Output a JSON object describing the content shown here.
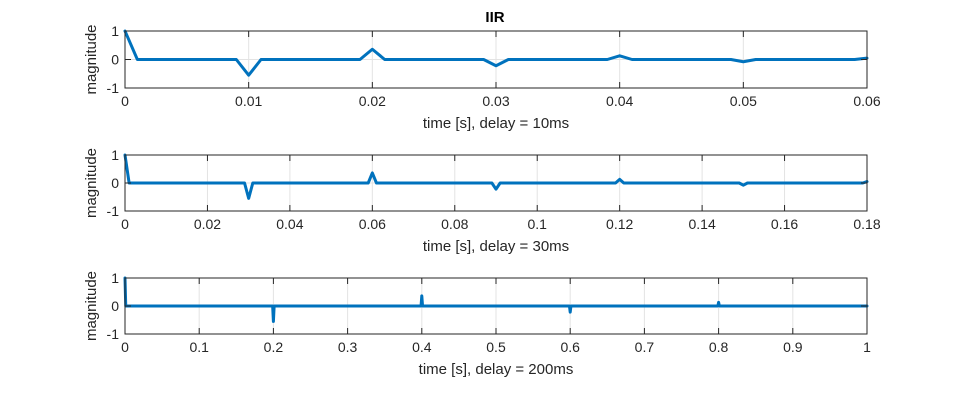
{
  "figure": {
    "title": "IIR",
    "line_color": "#0072BD"
  },
  "chart_data": [
    {
      "type": "line",
      "title": "IIR",
      "xlabel": "time [s], delay = 10ms",
      "ylabel": "magnitude",
      "xlim": [
        0,
        0.06
      ],
      "ylim": [
        -1,
        1
      ],
      "xticks": [
        0,
        0.01,
        0.02,
        0.03,
        0.04,
        0.05,
        0.06
      ],
      "xtick_labels": [
        "0",
        "0.01",
        "0.02",
        "0.03",
        "0.04",
        "0.05",
        "0.06"
      ],
      "yticks": [
        -1,
        0,
        1
      ],
      "ytick_labels": [
        "-1",
        "0",
        "1"
      ],
      "grid": true,
      "series": [
        {
          "x": [
            0,
            0.001,
            0.009,
            0.01,
            0.011,
            0.019,
            0.02,
            0.021,
            0.029,
            0.03,
            0.031,
            0.039,
            0.04,
            0.041,
            0.049,
            0.05,
            0.051,
            0.059,
            0.06
          ],
          "y": [
            1,
            0,
            0,
            -0.55,
            0,
            0,
            0.36,
            0,
            0,
            -0.22,
            0,
            0,
            0.13,
            0,
            0,
            -0.08,
            0,
            0,
            0.05
          ]
        }
      ]
    },
    {
      "type": "line",
      "xlabel": "time [s], delay = 30ms",
      "ylabel": "magnitude",
      "xlim": [
        0,
        0.18
      ],
      "ylim": [
        -1,
        1
      ],
      "xticks": [
        0,
        0.02,
        0.04,
        0.06,
        0.08,
        0.1,
        0.12,
        0.14,
        0.16,
        0.18
      ],
      "xtick_labels": [
        "0",
        "0.02",
        "0.04",
        "0.06",
        "0.08",
        "0.1",
        "0.12",
        "0.14",
        "0.16",
        "0.18"
      ],
      "yticks": [
        -1,
        0,
        1
      ],
      "ytick_labels": [
        "-1",
        "0",
        "1"
      ],
      "grid": true,
      "series": [
        {
          "x": [
            0,
            0.001,
            0.029,
            0.03,
            0.031,
            0.059,
            0.06,
            0.061,
            0.089,
            0.09,
            0.091,
            0.119,
            0.12,
            0.121,
            0.149,
            0.15,
            0.151,
            0.179,
            0.18
          ],
          "y": [
            1,
            0,
            0,
            -0.55,
            0,
            0,
            0.36,
            0,
            0,
            -0.22,
            0,
            0,
            0.13,
            0,
            0,
            -0.08,
            0,
            0,
            0.05
          ]
        }
      ]
    },
    {
      "type": "line",
      "xlabel": "time [s], delay = 200ms",
      "ylabel": "magnitude",
      "xlim": [
        0,
        1
      ],
      "ylim": [
        -1,
        1
      ],
      "xticks": [
        0,
        0.1,
        0.2,
        0.3,
        0.4,
        0.5,
        0.6,
        0.7,
        0.8,
        0.9,
        1
      ],
      "xtick_labels": [
        "0",
        "0.1",
        "0.2",
        "0.3",
        "0.4",
        "0.5",
        "0.6",
        "0.7",
        "0.8",
        "0.9",
        "1"
      ],
      "yticks": [
        -1,
        0,
        1
      ],
      "ytick_labels": [
        "-1",
        "0",
        "1"
      ],
      "grid": true,
      "series": [
        {
          "x": [
            0,
            0.001,
            0.199,
            0.2,
            0.201,
            0.399,
            0.4,
            0.401,
            0.599,
            0.6,
            0.601,
            0.799,
            0.8,
            0.801,
            1
          ],
          "y": [
            1,
            0,
            0,
            -0.55,
            0,
            0,
            0.36,
            0,
            0,
            -0.22,
            0,
            0,
            0.13,
            0,
            0
          ]
        }
      ]
    }
  ]
}
